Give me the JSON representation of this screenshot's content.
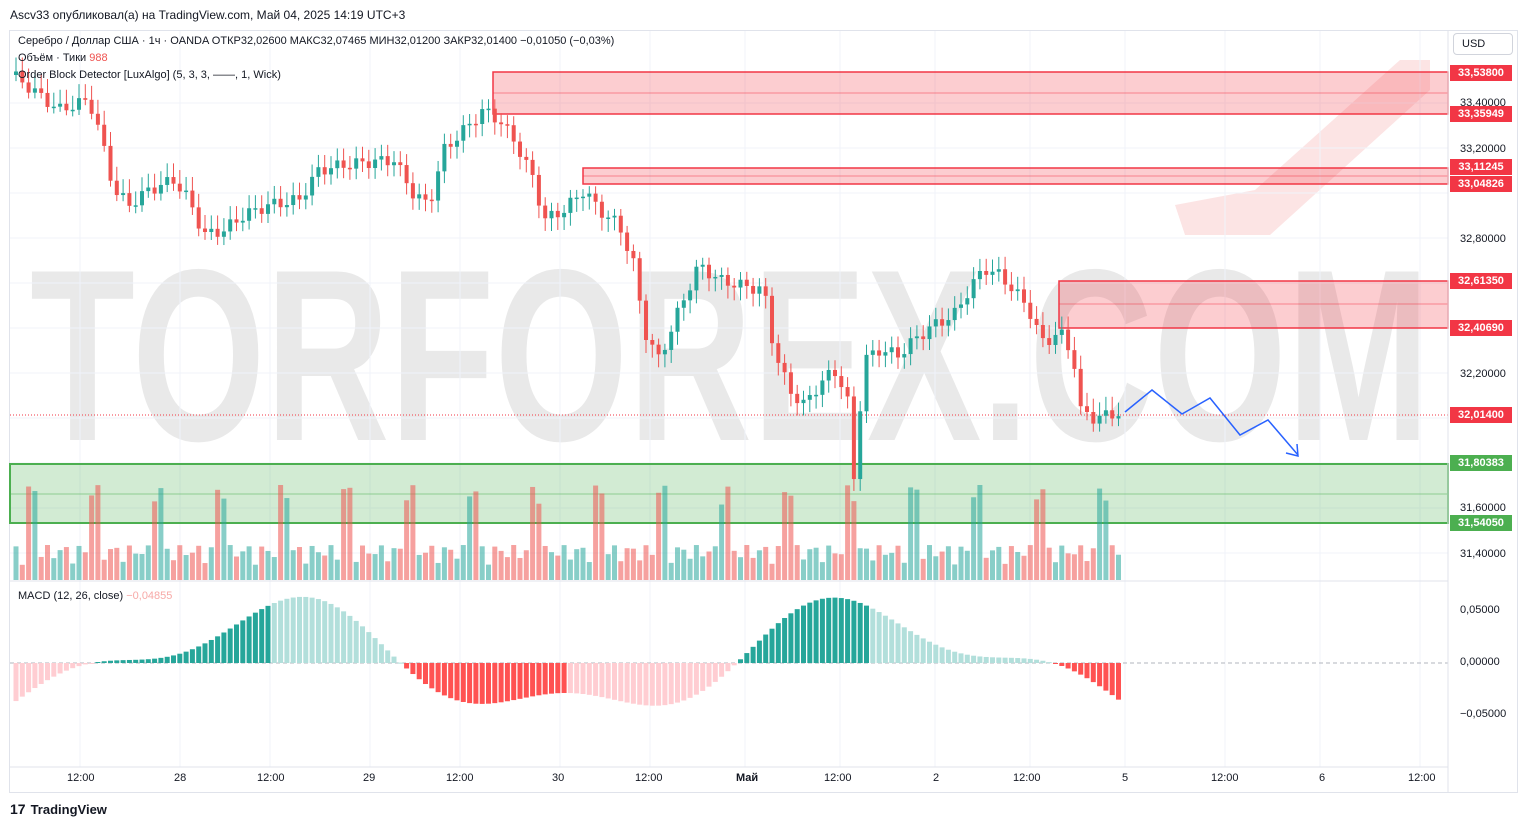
{
  "header": {
    "publisher_line": "Ascv33 опубликовал(а) на TradingView.com, Май 04, 2025 14:19 UTC+3"
  },
  "legend": {
    "symbol": "Серебро / Доллар США · 1ч · OANDA",
    "open_label": "ОТКР",
    "open": "32,02600",
    "high_label": "МАКС",
    "high": "32,07465",
    "low_label": "МИН",
    "low": "32,01200",
    "close_label": "ЗАКР",
    "close": "32,01400",
    "change": "−0,01050 (−0,03%)",
    "volume_label": "Объём · Тики",
    "volume_value": "988",
    "indicator": "Order Block Detector [LuxAlgo] (5, 3, 3, ——, 1, Wick)",
    "macd_label": "MACD (12, 26, close)",
    "macd_value": "−0,04855"
  },
  "currency_button": "USD",
  "price_axis": [
    "33,40000",
    "33,20000",
    "32,80000",
    "32,20000",
    "31,60000",
    "31,40000"
  ],
  "price_tags": [
    {
      "value": "33,53800",
      "color": "#f23645"
    },
    {
      "value": "33,35949",
      "color": "#f23645"
    },
    {
      "value": "33,11245",
      "color": "#f23645"
    },
    {
      "value": "33,04826",
      "color": "#f23645"
    },
    {
      "value": "32,61350",
      "color": "#f23645"
    },
    {
      "value": "32,40690",
      "color": "#f23645"
    },
    {
      "value": "32,01400",
      "color": "#f23645"
    },
    {
      "value": "31,80383",
      "color": "#4caf50"
    },
    {
      "value": "31,54050",
      "color": "#4caf50"
    }
  ],
  "macd_axis": [
    "0,05000",
    "0,00000",
    "−0,05000"
  ],
  "time_axis": [
    "12:00",
    "28",
    "12:00",
    "29",
    "12:00",
    "30",
    "12:00",
    "Май",
    "12:00",
    "2",
    "12:00",
    "5",
    "12:00",
    "6",
    "12:00"
  ],
  "watermark": "TORFOREX.COM",
  "footer": "TradingView",
  "colors": {
    "up": "#26a69a",
    "down": "#ef5350",
    "bear_zone": "#f23645",
    "bull_zone": "#4caf50",
    "forecast": "#2962ff"
  }
}
